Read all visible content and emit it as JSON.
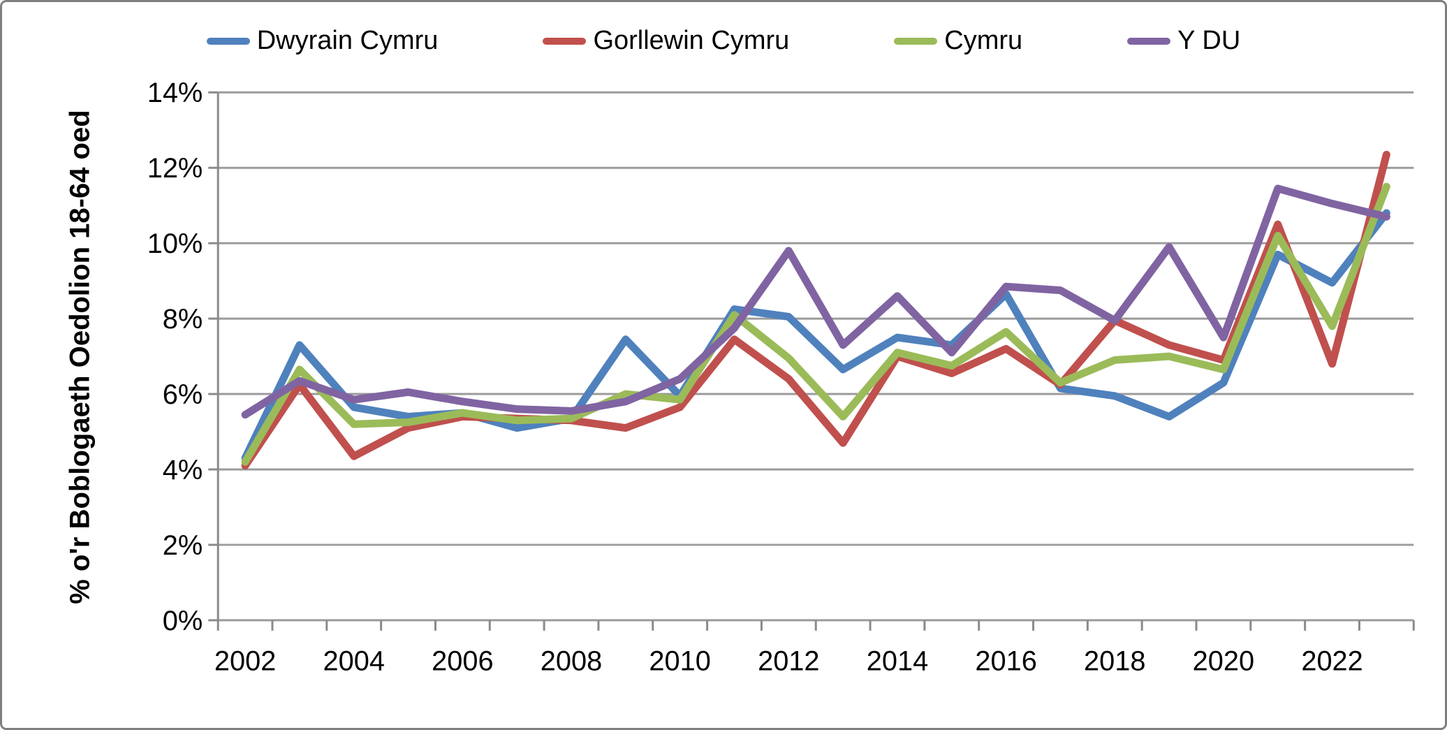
{
  "chart_data": {
    "type": "line",
    "ylabel": "% o'r Boblogaeth Oedolion 18-64 oed",
    "xlabel": "",
    "x": [
      2002,
      2003,
      2004,
      2005,
      2006,
      2007,
      2008,
      2009,
      2010,
      2011,
      2012,
      2013,
      2014,
      2015,
      2016,
      2017,
      2018,
      2019,
      2020,
      2021,
      2022,
      2023
    ],
    "x_tick_labels": [
      "2002",
      "2004",
      "2006",
      "2008",
      "2010",
      "2012",
      "2014",
      "2016",
      "2018",
      "2020",
      "2022"
    ],
    "ylim": [
      0,
      14
    ],
    "yticks": [
      0,
      2,
      4,
      6,
      8,
      10,
      12,
      14
    ],
    "ytick_labels": [
      "0%",
      "2%",
      "4%",
      "6%",
      "8%",
      "10%",
      "12%",
      "14%"
    ],
    "grid": true,
    "legend_position": "top",
    "series": [
      {
        "name": "Dwyrain Cymru",
        "color": "#4F81BD",
        "values": [
          4.3,
          7.3,
          5.65,
          5.4,
          5.5,
          5.1,
          5.35,
          7.45,
          5.95,
          8.25,
          8.05,
          6.65,
          7.5,
          7.3,
          8.65,
          6.15,
          5.95,
          5.4,
          6.3,
          9.7,
          8.95,
          10.8
        ]
      },
      {
        "name": "Gorllewin Cymru",
        "color": "#C0504D",
        "values": [
          4.1,
          6.25,
          4.35,
          5.1,
          5.4,
          5.35,
          5.3,
          5.1,
          5.65,
          7.45,
          6.4,
          4.7,
          7.0,
          6.55,
          7.2,
          6.25,
          7.95,
          7.3,
          6.9,
          10.5,
          6.8,
          12.35
        ]
      },
      {
        "name": "Cymru",
        "color": "#9BBB59",
        "values": [
          4.2,
          6.65,
          5.2,
          5.25,
          5.5,
          5.3,
          5.35,
          6.0,
          5.85,
          8.1,
          6.95,
          5.4,
          7.1,
          6.75,
          7.65,
          6.3,
          6.9,
          7.0,
          6.65,
          10.2,
          7.8,
          11.5
        ]
      },
      {
        "name": "Y DU",
        "color": "#8064A2",
        "values": [
          5.45,
          6.35,
          5.85,
          6.05,
          5.8,
          5.6,
          5.55,
          5.8,
          6.4,
          7.75,
          9.8,
          7.3,
          8.6,
          7.1,
          8.85,
          8.75,
          7.95,
          9.9,
          7.5,
          11.45,
          11.05,
          10.7
        ]
      }
    ]
  },
  "colors": {
    "grid": "#9b9b9b",
    "axis": "#8a8a8a",
    "border": "#7f7f7f",
    "text": "#000000",
    "background": "#ffffff"
  }
}
